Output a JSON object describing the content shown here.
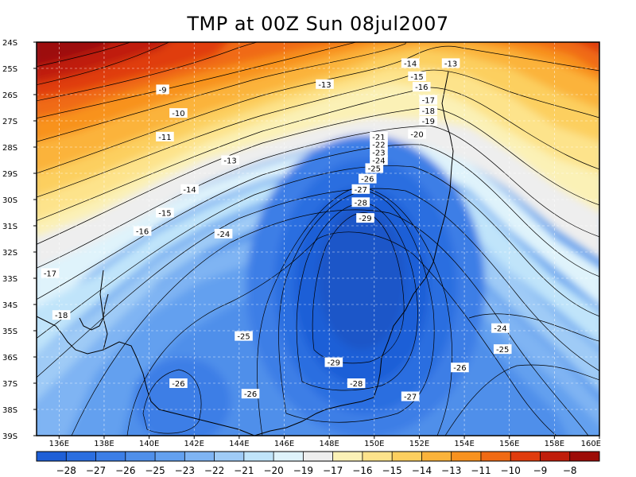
{
  "title": "TMP at 00Z Sun 08jul2007",
  "lat_labels": [
    "24S",
    "25S",
    "26S",
    "27S",
    "28S",
    "29S",
    "30S",
    "31S",
    "32S",
    "33S",
    "34S",
    "35S",
    "36S",
    "37S",
    "38S",
    "39S"
  ],
  "lon_labels": [
    "136E",
    "138E",
    "140E",
    "142E",
    "144E",
    "146E",
    "148E",
    "150E",
    "152E",
    "154E",
    "156E",
    "158E",
    "160E"
  ],
  "contour_labels": [
    {
      "text": "-9",
      "lat": -25.8,
      "lon": 140.6
    },
    {
      "text": "-10",
      "lat": -26.7,
      "lon": 141.3
    },
    {
      "text": "-11",
      "lat": -27.6,
      "lon": 140.7
    },
    {
      "text": "-13",
      "lat": -28.5,
      "lon": 143.6
    },
    {
      "text": "-14",
      "lat": -29.6,
      "lon": 141.8
    },
    {
      "text": "-15",
      "lat": -30.5,
      "lon": 140.7
    },
    {
      "text": "-16",
      "lat": -31.2,
      "lon": 139.7
    },
    {
      "text": "-17",
      "lat": -32.8,
      "lon": 135.6
    },
    {
      "text": "-18",
      "lat": -34.4,
      "lon": 136.1
    },
    {
      "text": "-13",
      "lat": -25.6,
      "lon": 147.8
    },
    {
      "text": "-14",
      "lat": -24.8,
      "lon": 151.6
    },
    {
      "text": "-13",
      "lat": -24.8,
      "lon": 153.4
    },
    {
      "text": "-15",
      "lat": -25.3,
      "lon": 151.9
    },
    {
      "text": "-16",
      "lat": -25.7,
      "lon": 152.1
    },
    {
      "text": "-17",
      "lat": -26.2,
      "lon": 152.4
    },
    {
      "text": "-18",
      "lat": -26.6,
      "lon": 152.4
    },
    {
      "text": "-19",
      "lat": -27.0,
      "lon": 152.4
    },
    {
      "text": "-20",
      "lat": -27.5,
      "lon": 151.9
    },
    {
      "text": "-21",
      "lat": -27.6,
      "lon": 150.2
    },
    {
      "text": "-22",
      "lat": -27.9,
      "lon": 150.2
    },
    {
      "text": "-23",
      "lat": -28.2,
      "lon": 150.2
    },
    {
      "text": "-24",
      "lat": -28.5,
      "lon": 150.2
    },
    {
      "text": "-25",
      "lat": -28.8,
      "lon": 150.0
    },
    {
      "text": "-26",
      "lat": -29.2,
      "lon": 149.7
    },
    {
      "text": "-27",
      "lat": -29.6,
      "lon": 149.4
    },
    {
      "text": "-28",
      "lat": -30.1,
      "lon": 149.4
    },
    {
      "text": "-29",
      "lat": -30.7,
      "lon": 149.6
    },
    {
      "text": "-24",
      "lat": -31.3,
      "lon": 143.3
    },
    {
      "text": "-25",
      "lat": -35.2,
      "lon": 144.2
    },
    {
      "text": "-29",
      "lat": -36.2,
      "lon": 148.2
    },
    {
      "text": "-28",
      "lat": -37.0,
      "lon": 149.2
    },
    {
      "text": "-27",
      "lat": -37.5,
      "lon": 151.6
    },
    {
      "text": "-26",
      "lat": -37.0,
      "lon": 141.3
    },
    {
      "text": "-26",
      "lat": -37.4,
      "lon": 144.5
    },
    {
      "text": "-26",
      "lat": -36.4,
      "lon": 153.8
    },
    {
      "text": "-25",
      "lat": -35.7,
      "lon": 155.7
    },
    {
      "text": "-24",
      "lat": -34.9,
      "lon": 155.6
    }
  ],
  "colorbar": {
    "labels": [
      "-28",
      "-27",
      "-26",
      "-25",
      "-23",
      "-22",
      "-21",
      "-20",
      "-19",
      "-17",
      "-16",
      "-15",
      "-14",
      "-13",
      "-11",
      "-10",
      "-9",
      "-8"
    ],
    "colors": [
      "#1e5fd7",
      "#2b6ee0",
      "#3c7ee6",
      "#4f8fea",
      "#63a0ef",
      "#7fb4f3",
      "#9fcbf6",
      "#c0e4fa",
      "#dff3fb",
      "#eeeeee",
      "#fbf1b6",
      "#fde38b",
      "#fccf5f",
      "#fbb33b",
      "#f8921f",
      "#f06a14",
      "#e03c0d",
      "#c01d0a",
      "#9d0c07"
    ]
  }
}
